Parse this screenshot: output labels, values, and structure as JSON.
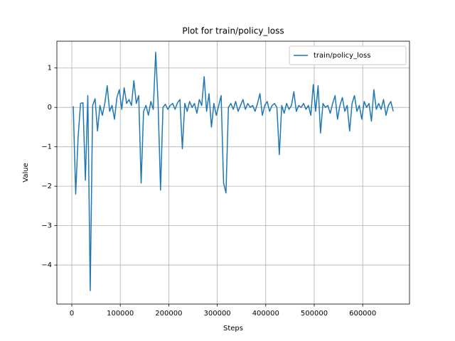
{
  "chart_data": {
    "type": "line",
    "title": "Plot for train/policy_loss",
    "x_label": "Steps",
    "y_label": "Value",
    "x": [
      3000,
      8000,
      13000,
      18000,
      23000,
      28000,
      33000,
      38000,
      43000,
      48000,
      53000,
      58000,
      63000,
      68000,
      73000,
      78000,
      83000,
      88000,
      93000,
      98000,
      103000,
      108000,
      113000,
      118000,
      123000,
      128000,
      133000,
      138000,
      143000,
      148000,
      153000,
      158000,
      163000,
      168000,
      173000,
      178000,
      183000,
      188000,
      193000,
      198000,
      203000,
      208000,
      213000,
      218000,
      223000,
      228000,
      233000,
      238000,
      243000,
      248000,
      253000,
      258000,
      263000,
      268000,
      273000,
      278000,
      283000,
      288000,
      293000,
      298000,
      303000,
      308000,
      313000,
      318000,
      323000,
      328000,
      333000,
      338000,
      343000,
      348000,
      353000,
      358000,
      363000,
      368000,
      373000,
      378000,
      383000,
      388000,
      393000,
      398000,
      403000,
      408000,
      413000,
      418000,
      423000,
      428000,
      433000,
      438000,
      443000,
      448000,
      453000,
      458000,
      463000,
      468000,
      473000,
      478000,
      483000,
      488000,
      493000,
      498000,
      503000,
      508000,
      513000,
      518000,
      523000,
      528000,
      533000,
      538000,
      543000,
      548000,
      553000,
      558000,
      563000,
      568000,
      573000,
      578000,
      583000,
      588000,
      593000,
      598000,
      603000,
      608000,
      613000,
      618000,
      623000,
      628000,
      633000,
      638000,
      643000,
      648000,
      653000,
      658000,
      663000
    ],
    "series": [
      {
        "name": "train/policy_loss",
        "color": "#1f77b4",
        "values": [
          0.03,
          -2.2,
          -0.75,
          0.1,
          0.12,
          -1.85,
          0.3,
          -4.65,
          0.05,
          0.22,
          -0.6,
          0.05,
          -0.2,
          0.1,
          0.55,
          -0.1,
          0.05,
          -0.3,
          0.25,
          0.45,
          -0.05,
          0.5,
          0.1,
          0.2,
          0.05,
          0.68,
          0.1,
          0.3,
          -1.92,
          -0.1,
          0.05,
          -0.2,
          0.15,
          -0.05,
          1.4,
          0.1,
          -2.1,
          0.0,
          0.08,
          -0.05,
          0.05,
          0.1,
          -0.05,
          0.12,
          0.2,
          -1.05,
          0.1,
          -0.1,
          0.15,
          0.0,
          0.1,
          -0.15,
          0.2,
          0.05,
          0.78,
          -0.1,
          0.35,
          -0.5,
          0.1,
          -0.2,
          0.05,
          0.3,
          -1.92,
          -2.17,
          0.0,
          0.1,
          -0.05,
          0.15,
          -0.1,
          0.05,
          0.2,
          -0.05,
          0.1,
          0.0,
          0.05,
          -0.1,
          0.1,
          0.35,
          -0.2,
          0.05,
          0.15,
          -0.1,
          0.05,
          0.1,
          0.0,
          -1.2,
          0.05,
          -0.15,
          0.1,
          -0.05,
          0.05,
          0.4,
          -0.1,
          0.05,
          0.0,
          0.1,
          -0.05,
          0.05,
          -0.2,
          0.58,
          -0.1,
          0.55,
          -0.65,
          0.1,
          0.0,
          0.05,
          -0.15,
          0.1,
          0.3,
          -0.3,
          0.05,
          0.25,
          -0.1,
          0.05,
          -0.6,
          0.1,
          0.3,
          -0.1,
          0.05,
          -0.3,
          0.15,
          0.0,
          0.1,
          -0.35,
          0.45,
          -0.05,
          0.1,
          -0.05,
          0.2,
          -0.2,
          0.05,
          0.15,
          -0.1
        ]
      }
    ],
    "xlim": [
      -30800,
      696500
    ],
    "ylim": [
      -4.99,
      1.68
    ],
    "xticks": [
      0,
      100000,
      200000,
      300000,
      400000,
      500000,
      600000
    ],
    "yticks": [
      {
        "value": -4,
        "label": "−4"
      },
      {
        "value": -3,
        "label": "−3"
      },
      {
        "value": -2,
        "label": "−2"
      },
      {
        "value": -1,
        "label": "−1"
      },
      0,
      1
    ],
    "grid": true,
    "legend": "upper right"
  }
}
